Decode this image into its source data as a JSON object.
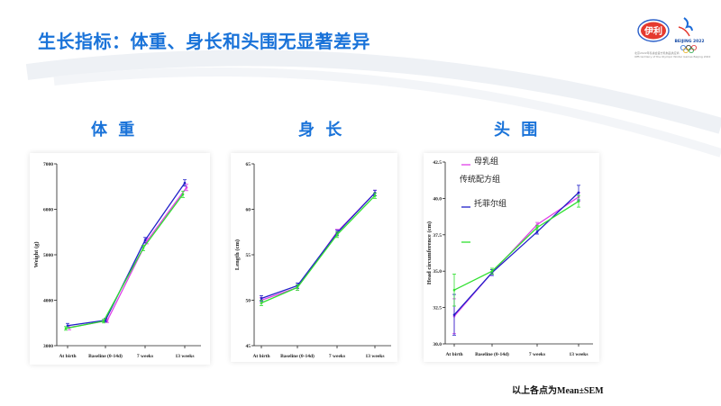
{
  "header": {
    "title": "生长指标：体重、身长和头围无显著差异",
    "logo_text": "伊利",
    "olympic_text": "BEIJING 2022",
    "sponsor_line1": "北京2022年冬奥会官方乳制品供应商",
    "sponsor_line2": "Official Dairy of the Olympic Winter Games Beijing 2022"
  },
  "colors": {
    "title": "#1a73d9",
    "s1": "#e040e8",
    "s2": "#2020c8",
    "s3": "#30e030"
  },
  "footnote": "以上各点为Mean±SEM",
  "chart_data": [
    {
      "type": "line",
      "title": "体 重",
      "ylabel": "Weight (g)",
      "categories": [
        "At birth",
        "Baseline (0-14d)",
        "7 weeks",
        "13 weeks"
      ],
      "ylim": [
        3000,
        7000
      ],
      "yticks": [
        3000,
        4000,
        5000,
        6000,
        7000
      ],
      "series": [
        {
          "values": [
            3400,
            3550,
            5300,
            6480
          ],
          "err": [
            50,
            40,
            60,
            70
          ]
        },
        {
          "values": [
            3440,
            3560,
            5320,
            6580
          ],
          "err": [
            50,
            40,
            60,
            70
          ]
        },
        {
          "values": [
            3380,
            3540,
            5150,
            6330
          ],
          "err": [
            40,
            40,
            60,
            70
          ]
        }
      ]
    },
    {
      "type": "line",
      "title": "身 长",
      "ylabel": "Length (cm)",
      "categories": [
        "At birth",
        "Baseline (0-14d)",
        "7 weeks",
        "13 weeks"
      ],
      "ylim": [
        45,
        65
      ],
      "yticks": [
        45,
        50,
        55,
        60,
        65
      ],
      "series": [
        {
          "values": [
            50.0,
            51.4,
            57.5,
            61.8
          ],
          "err": [
            0.3,
            0.3,
            0.3,
            0.3
          ]
        },
        {
          "values": [
            50.2,
            51.6,
            57.4,
            61.8
          ],
          "err": [
            0.3,
            0.3,
            0.3,
            0.3
          ]
        },
        {
          "values": [
            49.7,
            51.4,
            57.2,
            61.5
          ],
          "err": [
            0.3,
            0.3,
            0.3,
            0.3
          ]
        }
      ]
    },
    {
      "type": "line",
      "title": "头 围",
      "ylabel": "Head circumference (cm)",
      "categories": [
        "At birth",
        "Baseline (0-14d)",
        "7 weeks",
        "13 weeks"
      ],
      "ylim": [
        30.0,
        42.5
      ],
      "yticks": [
        "30.0",
        "32.5",
        "35.0",
        "37.5",
        "40.0",
        "42.5"
      ],
      "series": [
        {
          "name": "母乳组",
          "values": [
            31.9,
            34.9,
            38.2,
            40.1
          ],
          "err": [
            1.2,
            0.2,
            0.15,
            0.3
          ]
        },
        {
          "name": "托菲尔组",
          "values": [
            32.0,
            34.9,
            37.7,
            40.4
          ],
          "err": [
            1.4,
            0.2,
            0.15,
            0.5
          ]
        },
        {
          "name": "",
          "values": [
            33.7,
            35.0,
            38.0,
            39.8
          ],
          "err": [
            1.1,
            0.2,
            0.15,
            0.4
          ]
        }
      ],
      "legend": [
        "母乳组",
        "传统配方组",
        "托菲尔组"
      ]
    }
  ]
}
